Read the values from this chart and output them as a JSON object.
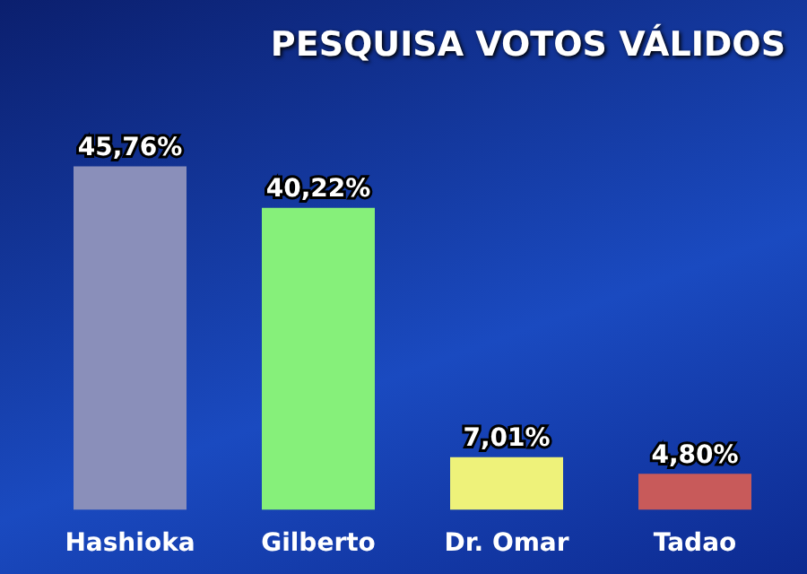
{
  "chart_data": {
    "type": "bar",
    "title": "PESQUISA VOTOS VÁLIDOS",
    "categories": [
      "Hashioka",
      "Gilberto",
      "Dr. Omar",
      "Tadao"
    ],
    "values": [
      45.76,
      40.22,
      7.01,
      4.8
    ],
    "colors": [
      "#8a8fba",
      "#86f07a",
      "#eef27a",
      "#c85a5a"
    ],
    "value_labels": [
      "45,76%",
      "40,22%",
      "7,01%",
      "4,80%"
    ],
    "legend": false
  }
}
